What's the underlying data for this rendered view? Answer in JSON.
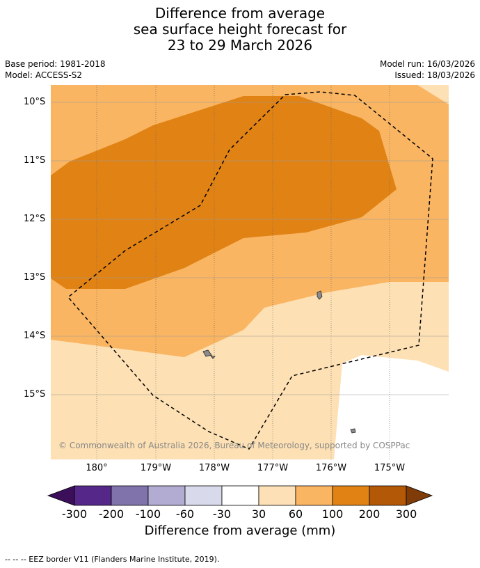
{
  "title": {
    "line1": "Difference from average",
    "line2": "sea surface height forecast for",
    "line3": "23 to 29 March 2026"
  },
  "meta": {
    "base_period": "Base period: 1981-2018",
    "model": "Model: ACCESS-S2",
    "model_run": "Model run: 16/03/2026",
    "issued": "Issued: 18/03/2026"
  },
  "map": {
    "lat_labels": [
      "10°S",
      "11°S",
      "12°S",
      "13°S",
      "14°S",
      "15°S"
    ],
    "lon_labels": [
      "180°",
      "179°W",
      "178°W",
      "177°W",
      "176°W",
      "175°W"
    ],
    "copyright": "© Commonwealth of Australia 2026, Bureau of Meteorology, supported by COSPPac",
    "region_colors": {
      "range_30_60": "#fde0b3",
      "range_60_100": "#f9b562",
      "range_100_200": "#e08214",
      "land": "#8c8c8c"
    }
  },
  "colorbar": {
    "tick_labels": [
      "-300",
      "-200",
      "-100",
      "-60",
      "-30",
      "30",
      "60",
      "100",
      "200",
      "300"
    ],
    "colors": [
      "#3b0f5a",
      "#542788",
      "#8073ac",
      "#b2abd2",
      "#d8daeb",
      "#ffffff",
      "#fde0b6",
      "#f9b562",
      "#e08214",
      "#b35806",
      "#7f3b08"
    ],
    "title": "Difference from average (mm)"
  },
  "footer": {
    "eez_note": "--  --  -- EEZ border V11 (Flanders Marine Institute, 2019)."
  }
}
